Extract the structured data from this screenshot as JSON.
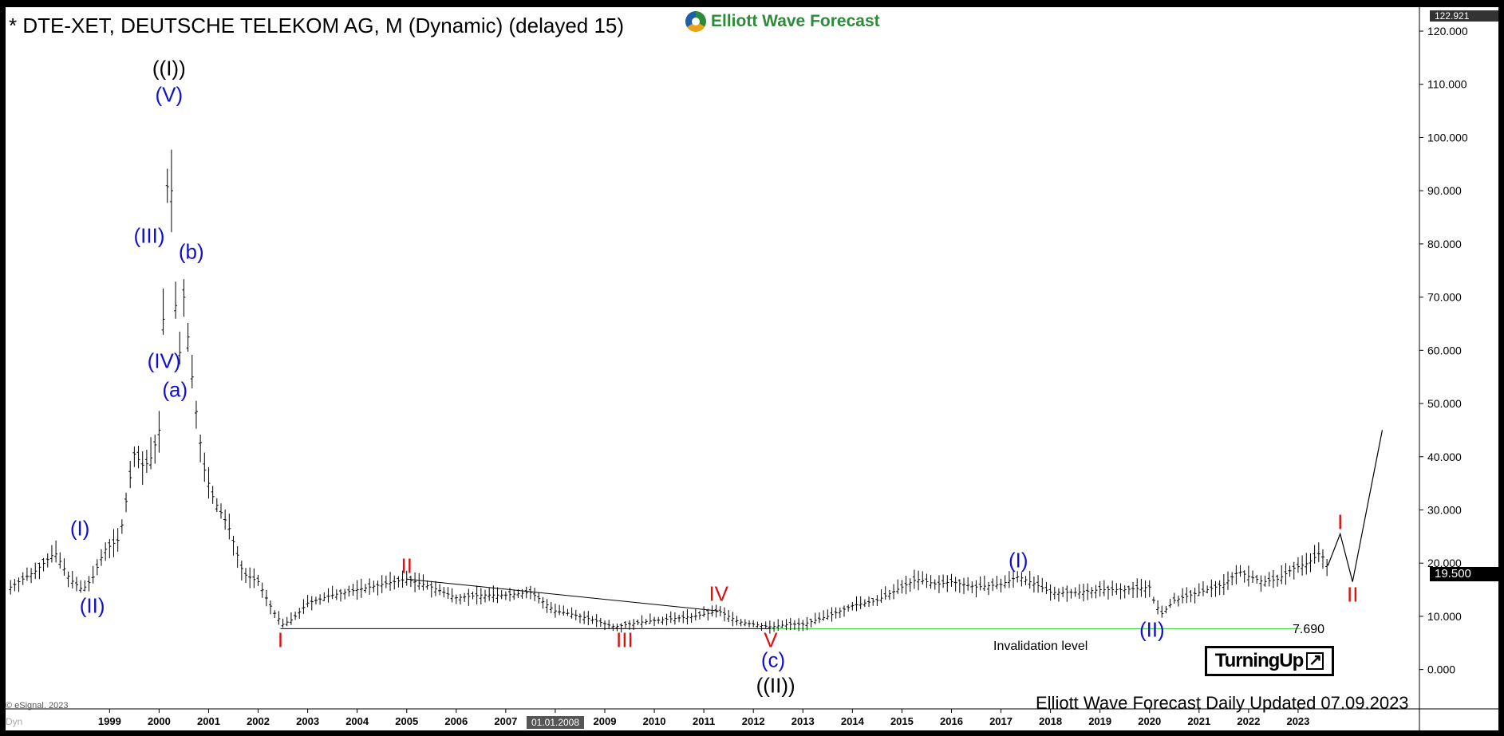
{
  "header": {
    "title": "* DTE-XET, DEUTSCHE TELEKOM AG, M (Dynamic) (delayed 15)",
    "logo_text": "Elliott Wave Forecast"
  },
  "footer": {
    "updated": "Elliott Wave Forecast Daily Updated 07.09.2023",
    "copyright": "© eSignal, 2023",
    "dyn": "Dyn",
    "badge": "TurningUp"
  },
  "annotations": {
    "invalidation_label": "Invalidation level",
    "invalidation_value": "7.690",
    "current_price": "19.500",
    "max_price": "122.921",
    "date_marker": "01.01.2008"
  },
  "colors": {
    "blue_wave": "#1111cc",
    "red_wave": "#dd1111",
    "black_wave": "#000000",
    "invalidation_line": "#33cc33"
  },
  "wave_labels": [
    {
      "text": "((I))",
      "color": "black",
      "x": 2000.2,
      "y": 113
    },
    {
      "text": "(V)",
      "color": "blue",
      "x": 2000.2,
      "y": 108
    },
    {
      "text": "(III)",
      "color": "blue",
      "x": 1999.8,
      "y": 81.5
    },
    {
      "text": "(b)",
      "color": "blue",
      "x": 2000.65,
      "y": 78.5
    },
    {
      "text": "(IV)",
      "color": "blue",
      "x": 2000.1,
      "y": 58
    },
    {
      "text": "(a)",
      "color": "blue",
      "x": 2000.32,
      "y": 52.5
    },
    {
      "text": "(I)",
      "color": "blue",
      "x": 1998.4,
      "y": 26.5
    },
    {
      "text": "(II)",
      "color": "blue",
      "x": 1998.65,
      "y": 12
    },
    {
      "text": "I",
      "color": "red",
      "x": 2002.45,
      "y": 5.5
    },
    {
      "text": "II",
      "color": "red",
      "x": 2005.0,
      "y": 19.5
    },
    {
      "text": "III",
      "color": "red",
      "x": 2009.4,
      "y": 5.5
    },
    {
      "text": "IV",
      "color": "red",
      "x": 2011.3,
      "y": 14.2
    },
    {
      "text": "V",
      "color": "red",
      "x": 2012.35,
      "y": 5.5
    },
    {
      "text": "(c)",
      "color": "blue",
      "x": 2012.4,
      "y": 1.8
    },
    {
      "text": "((II))",
      "color": "black",
      "x": 2012.45,
      "y": -3
    },
    {
      "text": "(I)",
      "color": "blue",
      "x": 2017.35,
      "y": 20.5
    },
    {
      "text": "(II)",
      "color": "blue",
      "x": 2020.05,
      "y": 7.5
    },
    {
      "text": "I",
      "color": "red",
      "x": 2023.85,
      "y": 27.7
    },
    {
      "text": "II",
      "color": "red",
      "x": 2024.1,
      "y": 14.0
    }
  ],
  "chart_data": {
    "type": "ohlc",
    "title": "* DTE-XET, DEUTSCHE TELEKOM AG, M (Dynamic) (delayed 15)",
    "xlabel": "",
    "ylabel": "",
    "x_ticks": [
      "1999",
      "2000",
      "2001",
      "2002",
      "2003",
      "2004",
      "2005",
      "2006",
      "2007",
      "2008",
      "2009",
      "2010",
      "2011",
      "2012",
      "2013",
      "2014",
      "2015",
      "2016",
      "2017",
      "2018",
      "2019",
      "2020",
      "2021",
      "2022",
      "2023"
    ],
    "x_tick_values": [
      1999,
      2000,
      2001,
      2002,
      2003,
      2004,
      2005,
      2006,
      2007,
      2008,
      2009,
      2010,
      2011,
      2012,
      2013,
      2014,
      2015,
      2016,
      2017,
      2018,
      2019,
      2020,
      2021,
      2022,
      2023
    ],
    "y_ticks": [
      "0.000",
      "10.000",
      "20.000",
      "30.000",
      "40.000",
      "50.000",
      "60.000",
      "70.000",
      "80.000",
      "90.000",
      "100.000",
      "110.000",
      "120.000"
    ],
    "y_tick_values": [
      0,
      10,
      20,
      30,
      40,
      50,
      60,
      70,
      80,
      90,
      100,
      110,
      120
    ],
    "xlim": [
      1996.9,
      2025.45
    ],
    "ylim": [
      -5.6,
      124.5
    ],
    "price_series": {
      "x": [
        1997.0,
        1997.5,
        1997.9,
        1998.2,
        1998.45,
        1998.65,
        1998.9,
        1999.2,
        1999.5,
        1999.7,
        1999.85,
        2000.0,
        2000.12,
        2000.2,
        2000.3,
        2000.38,
        2000.5,
        2000.7,
        2000.9,
        2001.1,
        2001.4,
        2001.7,
        2002.0,
        2002.3,
        2002.5,
        2002.7,
        2003.0,
        2003.5,
        2004.0,
        2004.5,
        2005.0,
        2005.5,
        2006.0,
        2006.5,
        2007.0,
        2007.5,
        2008.0,
        2008.3,
        2008.7,
        2009.2,
        2009.45,
        2009.8,
        2010.3,
        2010.8,
        2011.3,
        2011.7,
        2012.0,
        2012.35,
        2012.7,
        2013.0,
        2013.5,
        2014.0,
        2014.5,
        2015.0,
        2015.3,
        2015.7,
        2016.0,
        2016.5,
        2017.0,
        2017.35,
        2017.7,
        2018.0,
        2018.5,
        2019.0,
        2019.5,
        2020.0,
        2020.1,
        2020.25,
        2020.5,
        2021.0,
        2021.5,
        2021.8,
        2022.0,
        2022.3,
        2022.6,
        2022.9,
        2023.2,
        2023.45,
        2023.6
      ],
      "y": [
        15.5,
        18.5,
        22.0,
        17.0,
        15.0,
        17.0,
        22.5,
        24.5,
        40.5,
        38.0,
        40.0,
        45.0,
        75.0,
        102.0,
        78.0,
        55.0,
        70.0,
        52.0,
        38.0,
        32.0,
        27.0,
        18.0,
        16.5,
        11.0,
        8.5,
        9.5,
        12.5,
        14.0,
        15.0,
        16.0,
        17.0,
        15.5,
        13.5,
        14.0,
        14.0,
        14.5,
        11.0,
        10.5,
        9.5,
        8.0,
        8.5,
        9.0,
        9.5,
        10.0,
        11.0,
        9.0,
        8.5,
        8.0,
        8.5,
        8.5,
        10.0,
        12.0,
        13.0,
        15.5,
        17.0,
        16.0,
        16.5,
        15.5,
        16.0,
        17.5,
        16.0,
        14.5,
        14.5,
        15.0,
        15.0,
        15.5,
        12.5,
        10.5,
        13.0,
        14.5,
        16.0,
        18.5,
        17.5,
        16.5,
        17.0,
        19.0,
        20.0,
        22.0,
        19.5
      ]
    },
    "projection": {
      "x": [
        2023.6,
        2023.85,
        2024.1,
        2024.7
      ],
      "y": [
        19.5,
        25.5,
        16.5,
        45.0
      ]
    },
    "trendlines": [
      {
        "x": [
          2002.45,
          2012.35
        ],
        "y": [
          7.69,
          7.69
        ],
        "color": "black"
      },
      {
        "x": [
          2005.0,
          2011.3
        ],
        "y": [
          17.0,
          11.0
        ],
        "color": "black"
      },
      {
        "x": [
          2012.35,
          2023.05
        ],
        "y": [
          7.69,
          7.69
        ],
        "color": "green"
      }
    ],
    "invalidation_level": 7.69,
    "last_price": 19.5
  }
}
